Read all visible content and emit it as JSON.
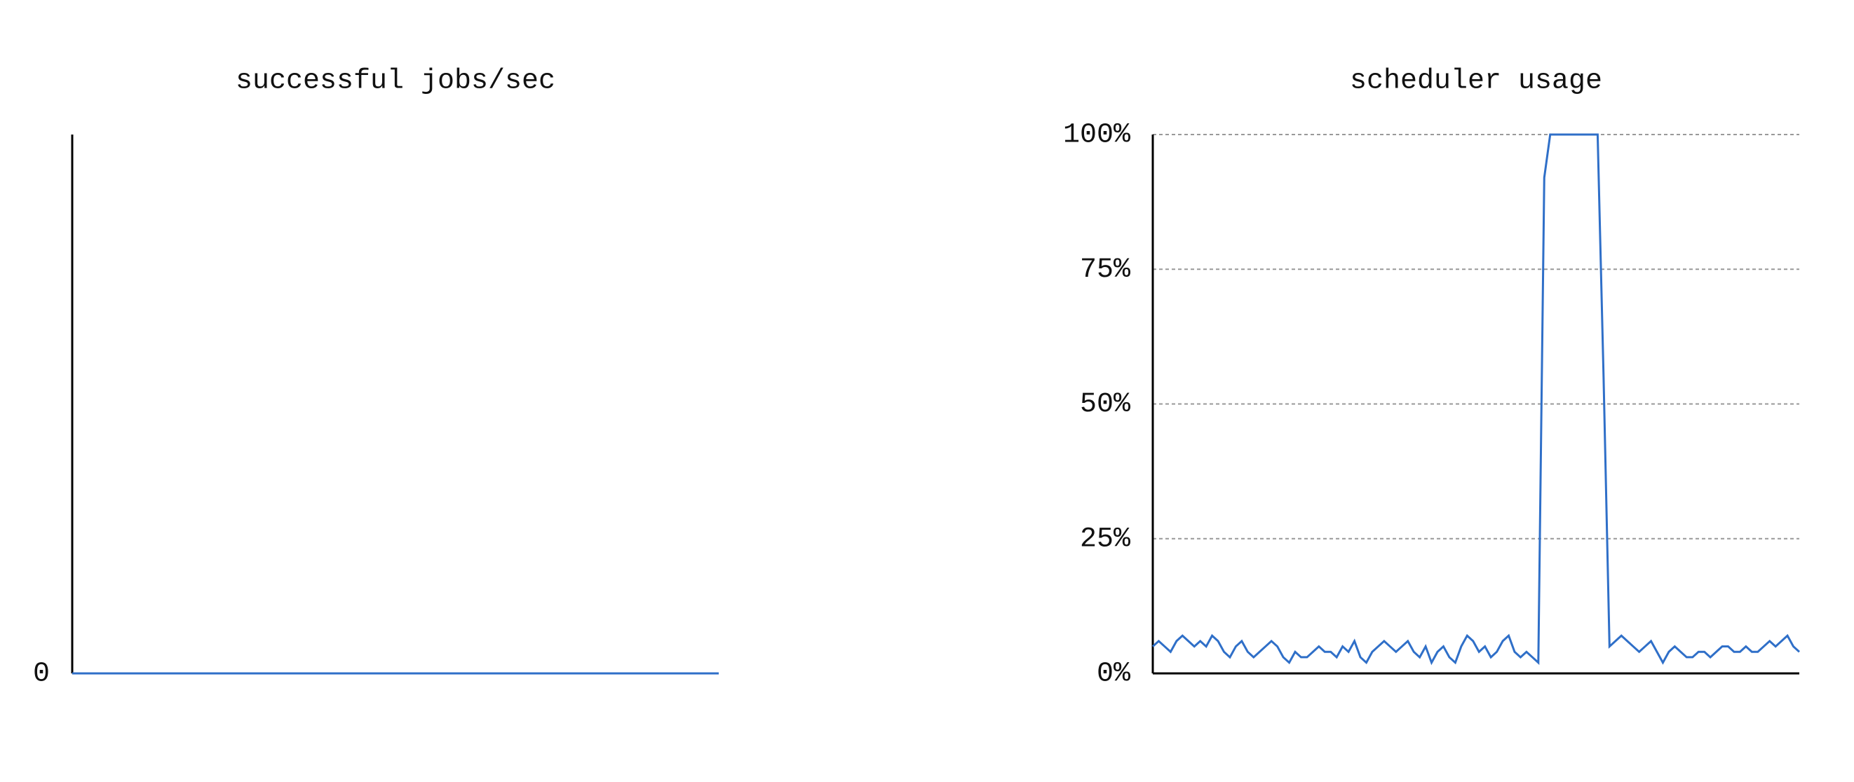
{
  "chart_data": [
    {
      "type": "line",
      "title": "successful jobs/sec",
      "series": [
        {
          "name": null,
          "color": "#2f6fc8",
          "values": [
            0,
            0,
            0,
            0,
            0,
            0,
            0,
            0,
            0,
            0,
            0,
            0,
            0,
            0,
            0,
            0,
            0,
            0,
            0,
            0,
            0,
            0,
            0,
            0,
            0,
            0,
            0,
            0,
            0,
            0,
            0,
            0,
            0,
            0,
            0,
            0,
            0,
            0,
            0,
            0
          ]
        }
      ],
      "ylim": [
        0,
        1
      ],
      "yticks": [
        0
      ],
      "grid": false
    },
    {
      "type": "line",
      "title": "scheduler usage",
      "series": [
        {
          "name": null,
          "color": "#2f6fc8",
          "values": [
            5,
            6,
            5,
            4,
            6,
            7,
            6,
            5,
            6,
            5,
            7,
            6,
            4,
            3,
            5,
            6,
            4,
            3,
            4,
            5,
            6,
            5,
            3,
            2,
            4,
            3,
            3,
            4,
            5,
            4,
            4,
            3,
            5,
            4,
            6,
            3,
            2,
            4,
            5,
            6,
            5,
            4,
            5,
            6,
            4,
            3,
            5,
            2,
            4,
            5,
            3,
            2,
            5,
            7,
            6,
            4,
            5,
            3,
            4,
            6,
            7,
            4,
            3,
            4,
            3,
            2,
            92,
            100,
            100,
            100,
            100,
            100,
            100,
            100,
            100,
            100,
            55,
            5,
            6,
            7,
            6,
            5,
            4,
            5,
            6,
            4,
            2,
            4,
            5,
            4,
            3,
            3,
            4,
            4,
            3,
            4,
            5,
            5,
            4,
            4,
            5,
            4,
            4,
            5,
            6,
            5,
            6,
            7,
            5,
            4
          ]
        }
      ],
      "ylim": [
        0,
        100
      ],
      "yticks": [
        {
          "value": 0,
          "label": "0%"
        },
        {
          "value": 25,
          "label": "25%"
        },
        {
          "value": 50,
          "label": "50%"
        },
        {
          "value": 75,
          "label": "75%"
        },
        {
          "value": 100,
          "label": "100%"
        }
      ],
      "grid": true
    }
  ]
}
